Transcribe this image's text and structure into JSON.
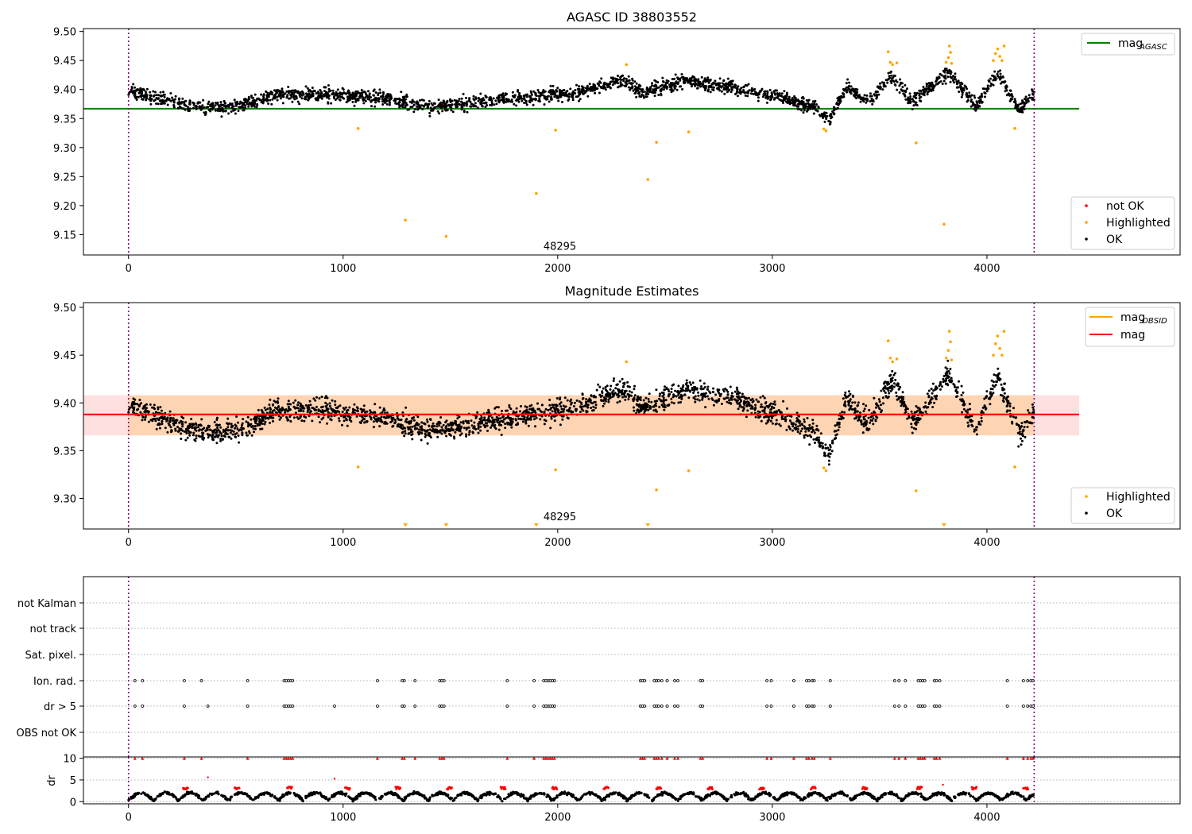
{
  "chart_data": [
    {
      "type": "scatter",
      "title": "AGASC ID 38803552",
      "xlim": [
        -210,
        4900
      ],
      "ylim": [
        9.115,
        9.505
      ],
      "x_ticks": [
        0,
        1000,
        2000,
        3000,
        4000
      ],
      "y_ticks": [
        9.15,
        9.2,
        9.25,
        9.3,
        9.35,
        9.4,
        9.45,
        9.5
      ],
      "y_tick_labels": [
        "9.15",
        "9.20",
        "9.25",
        "9.30",
        "9.35",
        "9.40",
        "9.45",
        "9.50"
      ],
      "obs_lines": [
        0,
        4220
      ],
      "annotation": {
        "text": "48295",
        "x": 2010,
        "y": 9.124
      },
      "lines": [
        {
          "name": "mag_AGASC",
          "label_main": "mag",
          "label_sub": "AGASC",
          "y": 9.367,
          "x_range": [
            -210,
            4430
          ],
          "color": "#008000"
        }
      ],
      "legend_lines_position": "top-right",
      "legend_points_position": "bottom-right",
      "legend_points": [
        {
          "label": "not OK",
          "color": "#ff0000"
        },
        {
          "label": "Highlighted",
          "color": "#ffa500"
        },
        {
          "label": "OK",
          "color": "#000000"
        }
      ],
      "ok_baseline": [
        [
          0,
          9.398
        ],
        [
          300,
          9.37
        ],
        [
          500,
          9.37
        ],
        [
          700,
          9.392
        ],
        [
          900,
          9.392
        ],
        [
          1200,
          9.385
        ],
        [
          1400,
          9.37
        ],
        [
          1700,
          9.382
        ],
        [
          1900,
          9.388
        ],
        [
          2100,
          9.395
        ],
        [
          2300,
          9.415
        ],
        [
          2400,
          9.395
        ],
        [
          2600,
          9.415
        ],
        [
          2800,
          9.405
        ],
        [
          3000,
          9.39
        ],
        [
          3200,
          9.37
        ],
        [
          3260,
          9.345
        ],
        [
          3350,
          9.405
        ],
        [
          3450,
          9.378
        ],
        [
          3560,
          9.425
        ],
        [
          3650,
          9.378
        ],
        [
          3820,
          9.43
        ],
        [
          3950,
          9.372
        ],
        [
          4050,
          9.43
        ],
        [
          4150,
          9.365
        ],
        [
          4220,
          9.392
        ]
      ],
      "highlighted_points": [
        [
          1070,
          9.333
        ],
        [
          1290,
          9.175
        ],
        [
          1480,
          9.147
        ],
        [
          1900,
          9.221
        ],
        [
          1990,
          9.33
        ],
        [
          2320,
          9.443
        ],
        [
          2420,
          9.245
        ],
        [
          2460,
          9.309
        ],
        [
          2610,
          9.327
        ],
        [
          3240,
          9.332
        ],
        [
          3250,
          9.329
        ],
        [
          3540,
          9.465
        ],
        [
          3550,
          9.447
        ],
        [
          3560,
          9.443
        ],
        [
          3580,
          9.446
        ],
        [
          3670,
          9.308
        ],
        [
          3800,
          9.168
        ],
        [
          3810,
          9.447
        ],
        [
          3820,
          9.455
        ],
        [
          3825,
          9.475
        ],
        [
          3830,
          9.464
        ],
        [
          3835,
          9.445
        ],
        [
          4030,
          9.45
        ],
        [
          4040,
          9.462
        ],
        [
          4050,
          9.47
        ],
        [
          4060,
          9.457
        ],
        [
          4070,
          9.45
        ],
        [
          4080,
          9.475
        ],
        [
          4130,
          9.333
        ]
      ]
    },
    {
      "type": "scatter",
      "title": "Magnitude Estimates",
      "xlim": [
        -210,
        4900
      ],
      "ylim": [
        9.268,
        9.505
      ],
      "x_ticks": [
        0,
        1000,
        2000,
        3000,
        4000
      ],
      "y_ticks": [
        9.3,
        9.35,
        9.4,
        9.45,
        9.5
      ],
      "y_tick_labels": [
        "9.30",
        "9.35",
        "9.40",
        "9.45",
        "9.50"
      ],
      "obs_lines": [
        0,
        4220
      ],
      "annotation": {
        "text": "48295",
        "x": 2010,
        "y": 9.277
      },
      "band": {
        "y_low": 9.366,
        "y_high": 9.408,
        "x_range": [
          -210,
          4430
        ],
        "color": "#ff0000"
      },
      "lines": [
        {
          "name": "mag_OBSID",
          "label_main": "mag",
          "label_sub": "OBSID",
          "y": 9.388,
          "x_range": [
            0,
            4220
          ],
          "color": "#ffa500"
        },
        {
          "name": "mag",
          "label_main": "mag",
          "label_sub": "",
          "y": 9.388,
          "x_range": [
            -210,
            4430
          ],
          "color": "#ff0000"
        }
      ],
      "legend_lines_position": "top-right",
      "legend_points_position": "bottom-right",
      "legend_points": [
        {
          "label": "Highlighted",
          "color": "#ffa500"
        },
        {
          "label": "OK",
          "color": "#000000"
        }
      ],
      "lower_limit_markers": [
        1290,
        1480,
        1900,
        2420,
        3800
      ],
      "highlighted_points": [
        [
          1070,
          9.333
        ],
        [
          1990,
          9.33
        ],
        [
          2320,
          9.443
        ],
        [
          2460,
          9.309
        ],
        [
          2610,
          9.329
        ],
        [
          3240,
          9.332
        ],
        [
          3250,
          9.329
        ],
        [
          3540,
          9.465
        ],
        [
          3550,
          9.447
        ],
        [
          3560,
          9.443
        ],
        [
          3580,
          9.446
        ],
        [
          3670,
          9.308
        ],
        [
          3810,
          9.447
        ],
        [
          3820,
          9.455
        ],
        [
          3825,
          9.475
        ],
        [
          3830,
          9.464
        ],
        [
          3835,
          9.445
        ],
        [
          4030,
          9.45
        ],
        [
          4040,
          9.462
        ],
        [
          4050,
          9.47
        ],
        [
          4060,
          9.457
        ],
        [
          4070,
          9.45
        ],
        [
          4080,
          9.475
        ],
        [
          4130,
          9.333
        ]
      ]
    },
    {
      "type": "scatter",
      "title": "",
      "xlim": [
        -210,
        4900
      ],
      "categories": [
        "not Kalman",
        "not track",
        "Sat. pixel.",
        "Ion. rad.",
        "dr > 5",
        "OBS not OK"
      ],
      "obs_lines": [
        0,
        4220
      ],
      "flag_x": {
        "Ion. rad.": [
          30,
          65,
          260,
          340,
          555,
          725,
          735,
          745,
          755,
          765,
          1160,
          1275,
          1285,
          1335,
          1450,
          1460,
          1470,
          1765,
          1890,
          1935,
          1945,
          1955,
          1965,
          1975,
          1985,
          2385,
          2395,
          2405,
          2450,
          2460,
          2470,
          2485,
          2510,
          2545,
          2560,
          2665,
          2675,
          2975,
          2995,
          3100,
          3160,
          3170,
          3185,
          3195,
          3270,
          3570,
          3590,
          3620,
          3680,
          3690,
          3700,
          3710,
          3755,
          3765,
          3780,
          4095,
          4170,
          4190,
          4205,
          4215
        ],
        "dr > 5": [
          30,
          65,
          260,
          370,
          555,
          725,
          735,
          745,
          755,
          765,
          960,
          1160,
          1275,
          1285,
          1335,
          1450,
          1460,
          1470,
          1765,
          1890,
          1935,
          1945,
          1955,
          1965,
          1975,
          1985,
          2385,
          2395,
          2405,
          2450,
          2460,
          2470,
          2485,
          2510,
          2545,
          2560,
          2665,
          2675,
          2975,
          2995,
          3100,
          3160,
          3170,
          3185,
          3195,
          3270,
          3570,
          3590,
          3620,
          3680,
          3690,
          3700,
          3710,
          3755,
          3765,
          3780,
          4095,
          4170,
          4190,
          4205,
          4215
        ]
      }
    },
    {
      "type": "scatter",
      "title": "",
      "ylabel": "dr",
      "xlim": [
        -210,
        4900
      ],
      "ylim": [
        -0.5,
        10.3
      ],
      "x_ticks": [
        0,
        1000,
        2000,
        3000,
        4000
      ],
      "y_ticks": [
        0,
        5,
        10
      ],
      "y_tick_labels": [
        "0",
        "5",
        "10"
      ],
      "obs_lines": [
        0,
        4220
      ],
      "red_at_10": [
        30,
        65,
        260,
        340,
        555,
        725,
        735,
        745,
        755,
        765,
        1160,
        1275,
        1285,
        1335,
        1450,
        1460,
        1470,
        1765,
        1890,
        1935,
        1945,
        1955,
        1965,
        1975,
        1985,
        2385,
        2395,
        2405,
        2450,
        2460,
        2470,
        2485,
        2510,
        2545,
        2560,
        2665,
        2675,
        2975,
        2995,
        3100,
        3160,
        3170,
        3185,
        3195,
        3270,
        3570,
        3590,
        3620,
        3680,
        3690,
        3700,
        3710,
        3755,
        3765,
        3780,
        4095,
        4170,
        4190,
        4205,
        4215
      ],
      "red_mid": [
        [
          370,
          5.6
        ],
        [
          960,
          5.3
        ],
        [
          3795,
          3.9
        ]
      ],
      "red_clusters_near_3": [
        255,
        495,
        740,
        1010,
        1245,
        1485,
        1735,
        1975,
        2215,
        2460,
        2700,
        2940,
        3180,
        3420,
        3675,
        3930,
        4170
      ]
    }
  ]
}
